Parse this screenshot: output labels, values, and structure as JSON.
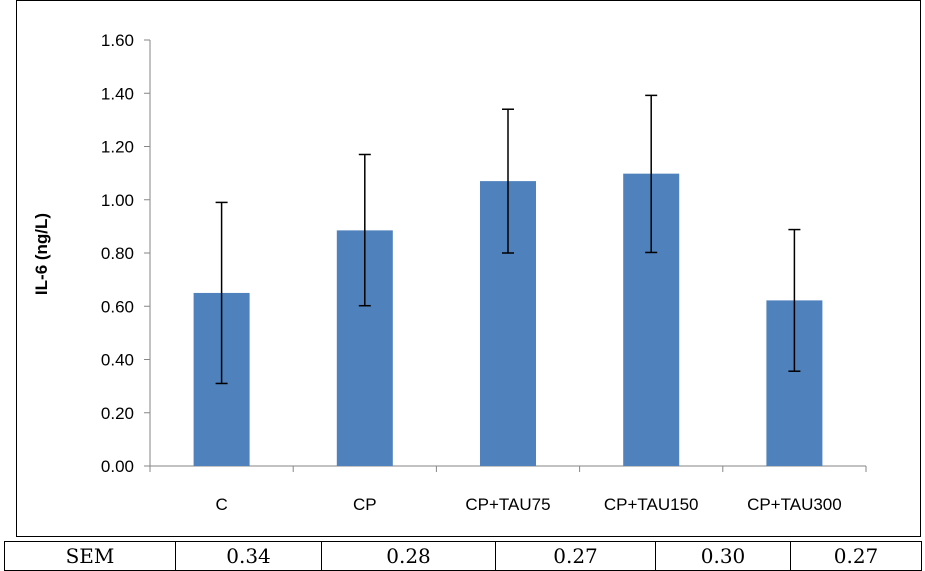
{
  "chart_data": {
    "type": "bar",
    "categories": [
      "C",
      "CP",
      "CP+TAU75",
      "CP+TAU150",
      "CP+TAU300"
    ],
    "values": [
      0.65,
      0.885,
      1.07,
      1.098,
      0.622
    ],
    "error_bars": {
      "lower": [
        0.31,
        0.602,
        0.8,
        0.802,
        0.356
      ],
      "upper": [
        0.99,
        1.17,
        1.34,
        1.392,
        0.888
      ]
    },
    "xlabel": "",
    "ylabel": "IL-6 (ng/L)",
    "ylim": [
      0,
      1.6
    ],
    "yticks": [
      "0.00",
      "0.20",
      "0.40",
      "0.60",
      "0.80",
      "1.00",
      "1.20",
      "1.40",
      "1.60"
    ],
    "bar_color": "#4f81bd",
    "grid": false,
    "legend": "none"
  },
  "sem_table": {
    "label": "SEM",
    "values": [
      "0.34",
      "0.28",
      "0.27",
      "0.30",
      "0.27"
    ]
  }
}
